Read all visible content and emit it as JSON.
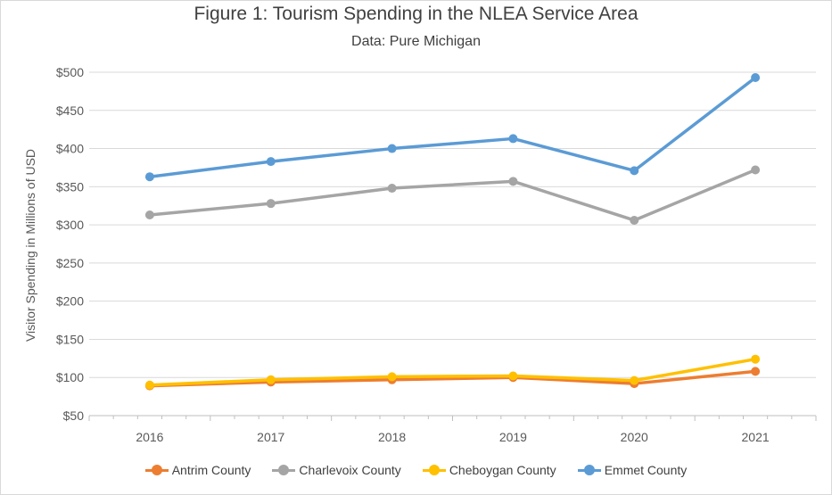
{
  "chart_data": {
    "type": "line",
    "title": "Figure 1: Tourism Spending in the NLEA Service Area",
    "subtitle": "Data: Pure Michigan",
    "xlabel": "",
    "ylabel": "Visitor Spending in Millions of USD",
    "categories": [
      "2016",
      "2017",
      "2018",
      "2019",
      "2020",
      "2021"
    ],
    "ylim": [
      50,
      500
    ],
    "yticks": [
      "$50",
      "$100",
      "$150",
      "$200",
      "$250",
      "$300",
      "$350",
      "$400",
      "$450",
      "$500"
    ],
    "grid": true,
    "legend_position": "bottom",
    "series": [
      {
        "name": "Antrim County",
        "color": "#ED7D31",
        "values": [
          89,
          94,
          97,
          100,
          92,
          108
        ]
      },
      {
        "name": "Charlevoix County",
        "color": "#A5A5A5",
        "values": [
          313,
          328,
          348,
          357,
          306,
          372
        ]
      },
      {
        "name": "Cheboygan County",
        "color": "#FFC000",
        "values": [
          90,
          97,
          101,
          102,
          96,
          124
        ]
      },
      {
        "name": "Emmet County",
        "color": "#5B9BD5",
        "values": [
          363,
          383,
          400,
          413,
          371,
          493
        ]
      }
    ]
  }
}
